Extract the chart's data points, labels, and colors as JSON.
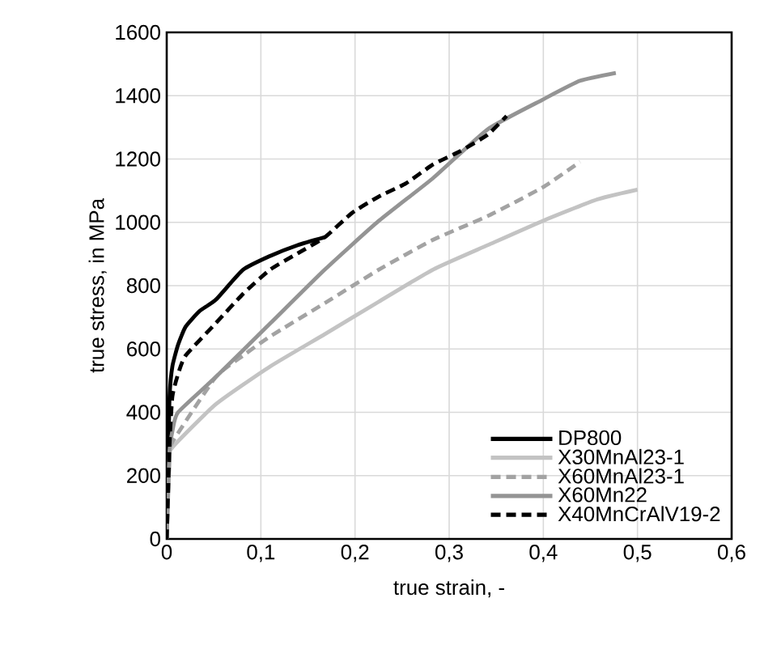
{
  "chart_data": {
    "type": "line",
    "xlabel": "true strain, -",
    "ylabel": "true stress, in MPa",
    "xlim": [
      0,
      0.6
    ],
    "ylim": [
      0,
      1600
    ],
    "xticks": [
      0,
      {
        "value": 0.1,
        "label": "0,1"
      },
      {
        "value": 0.2,
        "label": "0,2"
      },
      {
        "value": 0.3,
        "label": "0,3"
      },
      {
        "value": 0.4,
        "label": "0,4"
      },
      {
        "value": 0.5,
        "label": "0,5"
      },
      {
        "value": 0.6,
        "label": "0,6"
      }
    ],
    "yticks": [
      0,
      200,
      400,
      600,
      800,
      1000,
      1200,
      1400,
      1600
    ],
    "grid": true,
    "legend": "bottom right",
    "marker": "none",
    "series": [
      {
        "name": "DP800",
        "color": "#000000",
        "line_style": "solid",
        "x": [
          0,
          0.002,
          0.003,
          0.006,
          0.012,
          0.02,
          0.035,
          0.052,
          0.081,
          0.11,
          0.139,
          0.168
        ],
        "values": [
          0,
          300,
          450,
          545,
          613,
          670,
          720,
          755,
          850,
          894,
          928,
          953
        ]
      },
      {
        "name": "X30MnAl23-1",
        "color": "#c3c3c3",
        "line_style": "solid",
        "x": [
          0,
          0.003,
          0.006,
          0.052,
          0.11,
          0.168,
          0.225,
          0.283,
          0.341,
          0.399,
          0.457,
          0.5
        ],
        "values": [
          0,
          250,
          289,
          425,
          545,
          647,
          749,
          851,
          928,
          1004,
          1072,
          1103
        ]
      },
      {
        "name": "X60MnAl23-1",
        "color": "#a3a3a3",
        "line_style": "dashed",
        "x": [
          0,
          0.003,
          0.006,
          0.052,
          0.081,
          0.11,
          0.168,
          0.225,
          0.283,
          0.341,
          0.399,
          0.439
        ],
        "values": [
          0,
          260,
          306,
          511,
          579,
          640,
          745,
          850,
          945,
          1020,
          1110,
          1191
        ]
      },
      {
        "name": "X60Mn22",
        "color": "#949494",
        "line_style": "solid",
        "x": [
          0,
          0.003,
          0.006,
          0.012,
          0.052,
          0.11,
          0.168,
          0.225,
          0.283,
          0.341,
          0.399,
          0.439,
          0.477
        ],
        "values": [
          0,
          280,
          340,
          400,
          511,
          681,
          851,
          1004,
          1140,
          1294,
          1387,
          1447,
          1472
        ]
      },
      {
        "name": "X40MnCrAlV19-2",
        "color": "#000000",
        "line_style": "dashed",
        "x": [
          0,
          0.003,
          0.006,
          0.012,
          0.02,
          0.052,
          0.081,
          0.11,
          0.139,
          0.168,
          0.197,
          0.225,
          0.254,
          0.283,
          0.312,
          0.341,
          0.361
        ],
        "values": [
          0,
          300,
          450,
          520,
          579,
          681,
          774,
          851,
          902,
          953,
          1030,
          1081,
          1123,
          1183,
          1225,
          1277,
          1336
        ]
      }
    ]
  }
}
